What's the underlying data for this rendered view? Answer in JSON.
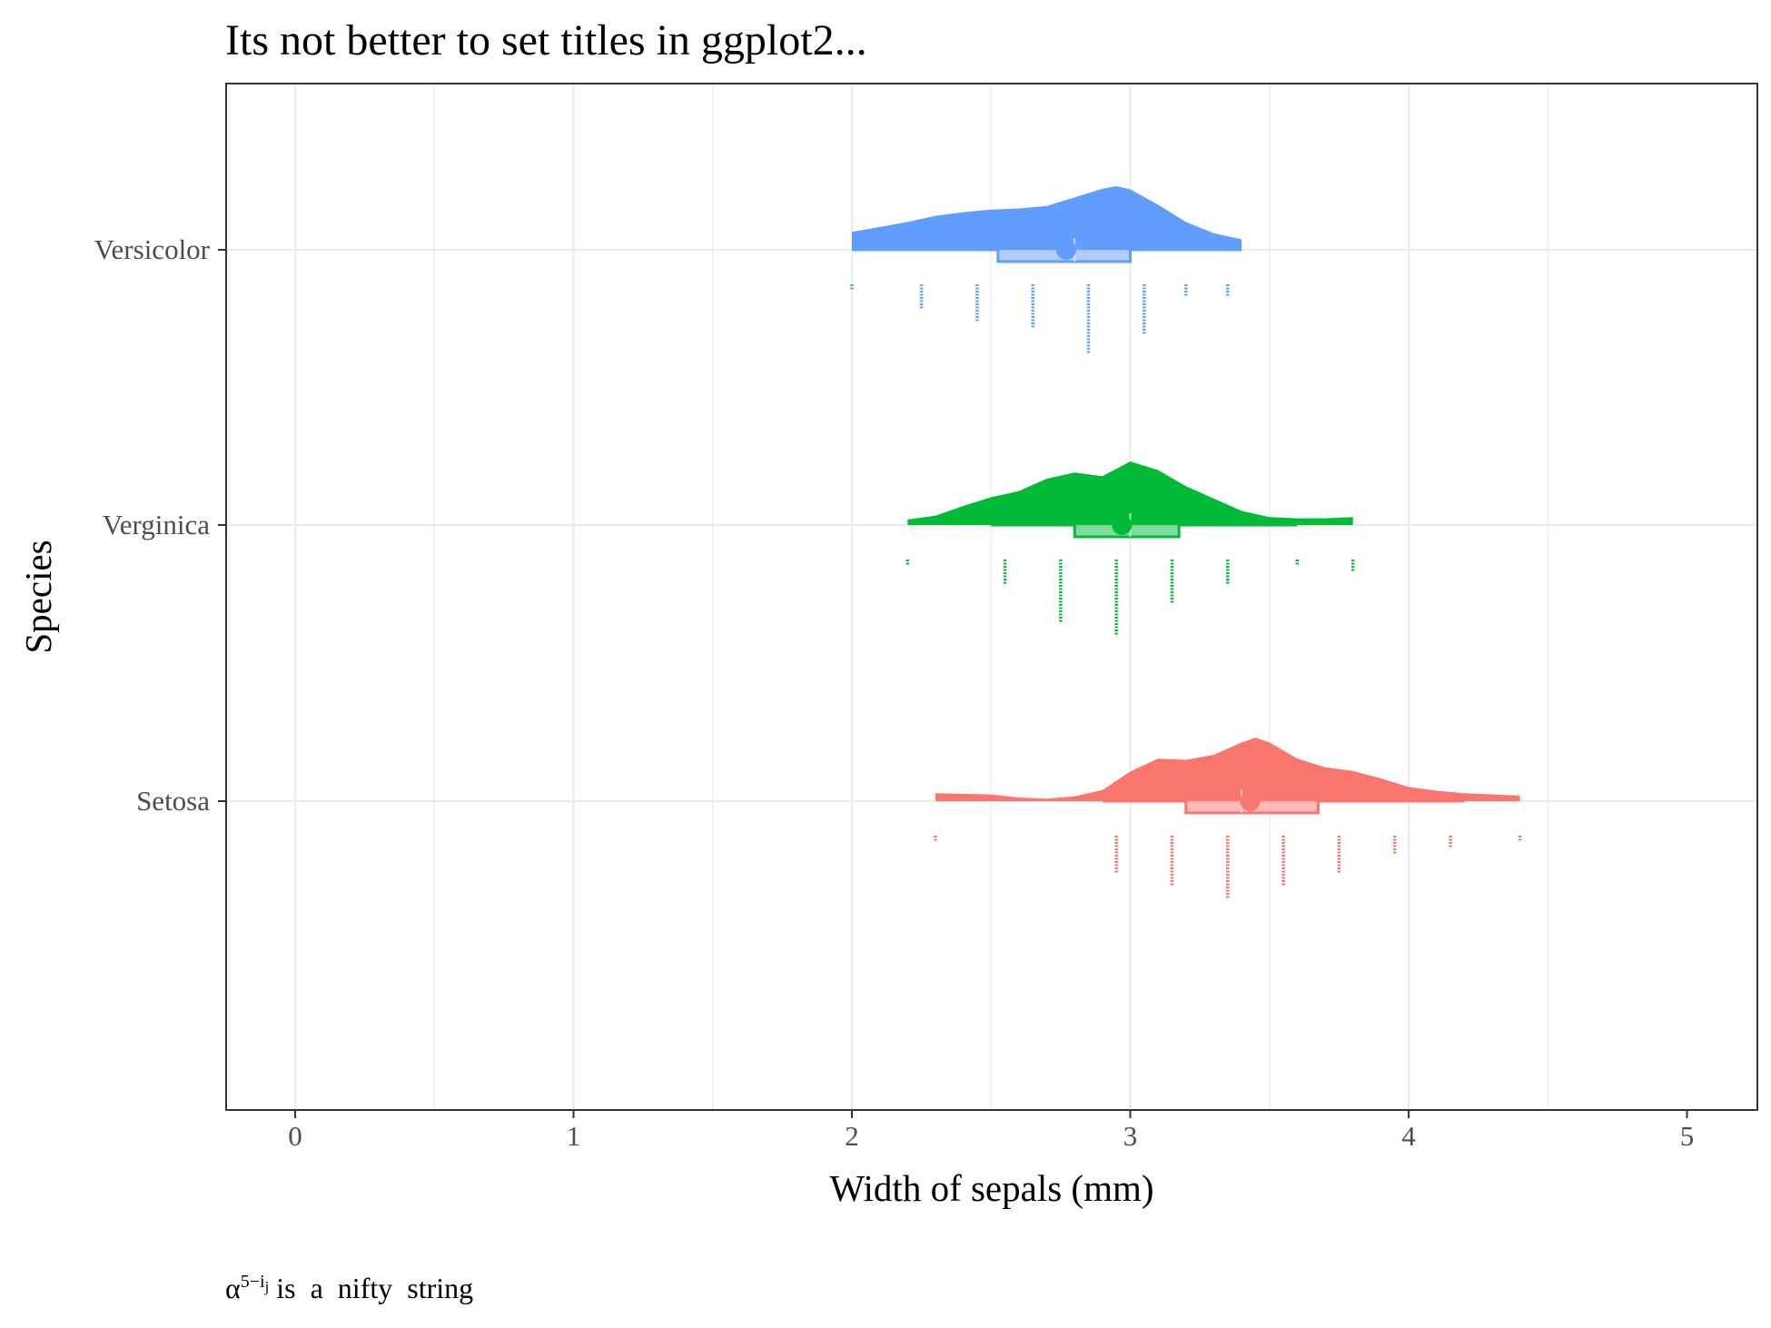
{
  "chart_data": {
    "type": "raincloud",
    "title": "Its not better to set titles in ggplot2...",
    "xlabel": "Width of sepals (mm)",
    "ylabel": "Species",
    "xlim": [
      -0.25,
      5.25
    ],
    "x_ticks": [
      "0",
      "1",
      "2",
      "3",
      "4",
      "5"
    ],
    "grid": true,
    "caption": {
      "base": "α",
      "superscript": "5−i",
      "subscript": "j",
      "text": " is  a  nifty  string"
    },
    "series": [
      {
        "name": "Setosa",
        "color": "#F8766D",
        "box": {
          "min": 2.9,
          "q1": 3.2,
          "median": 3.4,
          "q3": 3.675,
          "max": 4.2
        },
        "mean": 3.43,
        "density": [
          [
            2.3,
            0.1
          ],
          [
            2.5,
            0.08
          ],
          [
            2.6,
            0.03
          ],
          [
            2.7,
            0.01
          ],
          [
            2.8,
            0.05
          ],
          [
            2.9,
            0.15
          ],
          [
            3.0,
            0.45
          ],
          [
            3.1,
            0.66
          ],
          [
            3.2,
            0.64
          ],
          [
            3.3,
            0.72
          ],
          [
            3.4,
            0.92
          ],
          [
            3.45,
            1.0
          ],
          [
            3.5,
            0.92
          ],
          [
            3.6,
            0.66
          ],
          [
            3.7,
            0.52
          ],
          [
            3.8,
            0.46
          ],
          [
            3.9,
            0.34
          ],
          [
            4.0,
            0.2
          ],
          [
            4.1,
            0.14
          ],
          [
            4.2,
            0.1
          ],
          [
            4.3,
            0.08
          ],
          [
            4.4,
            0.06
          ]
        ],
        "rug": [
          [
            2.3,
            1
          ],
          [
            2.95,
            6
          ],
          [
            3.15,
            8
          ],
          [
            3.35,
            10
          ],
          [
            3.55,
            8
          ],
          [
            3.75,
            6
          ],
          [
            3.95,
            3
          ],
          [
            4.15,
            2
          ],
          [
            4.4,
            1
          ]
        ]
      },
      {
        "name": "Verginica",
        "color": "#00BA38",
        "box": {
          "min": 2.5,
          "q1": 2.8,
          "median": 3.0,
          "q3": 3.175,
          "max": 3.6
        },
        "mean": 2.97,
        "density": [
          [
            2.2,
            0.06
          ],
          [
            2.3,
            0.12
          ],
          [
            2.4,
            0.28
          ],
          [
            2.5,
            0.42
          ],
          [
            2.6,
            0.52
          ],
          [
            2.7,
            0.72
          ],
          [
            2.8,
            0.82
          ],
          [
            2.9,
            0.76
          ],
          [
            3.0,
            1.0
          ],
          [
            3.1,
            0.86
          ],
          [
            3.2,
            0.6
          ],
          [
            3.3,
            0.4
          ],
          [
            3.4,
            0.2
          ],
          [
            3.5,
            0.1
          ],
          [
            3.6,
            0.08
          ],
          [
            3.7,
            0.08
          ],
          [
            3.8,
            0.1
          ]
        ],
        "rug": [
          [
            2.2,
            1
          ],
          [
            2.55,
            4
          ],
          [
            2.75,
            10
          ],
          [
            2.95,
            12
          ],
          [
            3.15,
            7
          ],
          [
            3.35,
            4
          ],
          [
            3.6,
            1
          ],
          [
            3.8,
            2
          ]
        ]
      },
      {
        "name": "Versicolor",
        "color": "#619CFF",
        "box": {
          "min": 2.0,
          "q1": 2.525,
          "median": 2.8,
          "q3": 3.0,
          "max": 3.4
        },
        "mean": 2.77,
        "density": [
          [
            2.0,
            0.26
          ],
          [
            2.1,
            0.34
          ],
          [
            2.2,
            0.42
          ],
          [
            2.3,
            0.52
          ],
          [
            2.4,
            0.58
          ],
          [
            2.5,
            0.62
          ],
          [
            2.6,
            0.64
          ],
          [
            2.7,
            0.68
          ],
          [
            2.8,
            0.82
          ],
          [
            2.9,
            0.96
          ],
          [
            2.95,
            1.0
          ],
          [
            3.0,
            0.95
          ],
          [
            3.1,
            0.7
          ],
          [
            3.2,
            0.42
          ],
          [
            3.3,
            0.24
          ],
          [
            3.4,
            0.14
          ]
        ],
        "rug": [
          [
            2.0,
            1
          ],
          [
            2.25,
            4
          ],
          [
            2.45,
            6
          ],
          [
            2.65,
            7
          ],
          [
            2.85,
            11
          ],
          [
            3.05,
            8
          ],
          [
            3.2,
            2
          ],
          [
            3.35,
            2
          ]
        ]
      }
    ]
  }
}
